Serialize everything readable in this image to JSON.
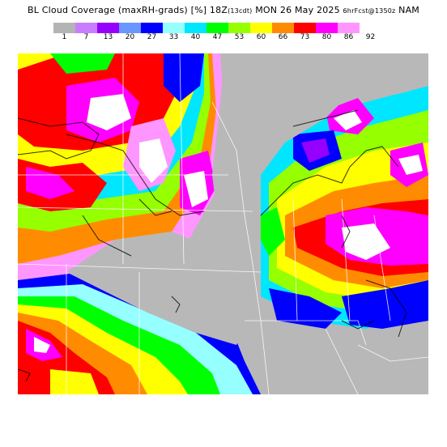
{
  "title": {
    "field": "BL Cloud Coverage (maxRH-grads)",
    "units": "[%]",
    "valid_time": "18Z",
    "local_time": "(13cdt)",
    "date": "MON 26 May 2025",
    "forecast_info": "6hrFcst@1350z",
    "model": "NAM"
  },
  "legend": {
    "colors": [
      "#b4b4b4",
      "#c87dff",
      "#9600ff",
      "#6996ff",
      "#0000ff",
      "#96ffff",
      "#00e6ff",
      "#00ff00",
      "#96ff00",
      "#ffff00",
      "#ff8c00",
      "#ff0000",
      "#ff00ff",
      "#ff96ff"
    ],
    "labels": [
      "1",
      "7",
      "13",
      "20",
      "27",
      "33",
      "40",
      "47",
      "53",
      "60",
      "66",
      "73",
      "80",
      "86",
      "92"
    ]
  }
}
